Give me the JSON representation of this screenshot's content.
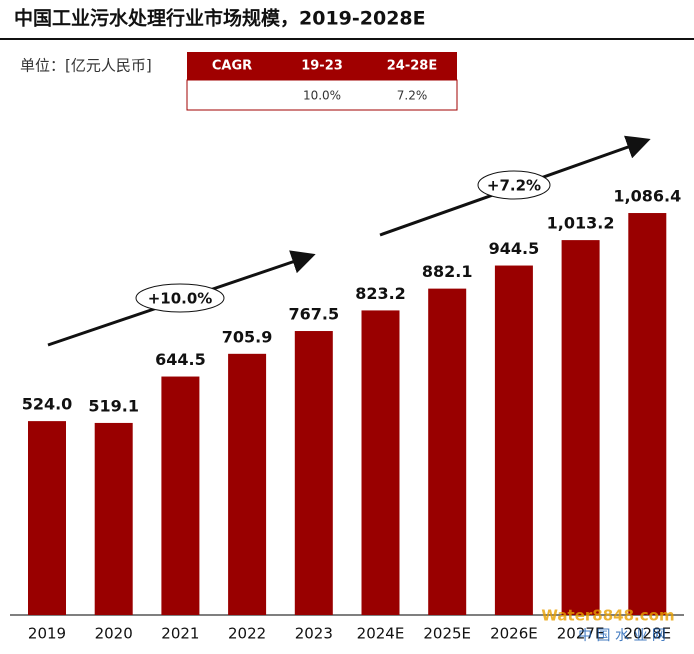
{
  "chart_data": {
    "type": "bar",
    "title": "中国工业污水处理行业市场规模，2019-2028E",
    "unit": "单位：[亿元人民币]",
    "cagr_table": {
      "header": [
        "CAGR",
        "19-23",
        "24-28E"
      ],
      "row": [
        "10.0%",
        "7.2%"
      ]
    },
    "categories": [
      "2019",
      "2020",
      "2021",
      "2022",
      "2023",
      "2024E",
      "2025E",
      "2026E",
      "2027E",
      "2028E"
    ],
    "values": [
      524.0,
      519.1,
      644.5,
      705.9,
      767.5,
      823.2,
      882.1,
      944.5,
      1013.2,
      1086.4
    ],
    "value_labels": [
      "524.0",
      "519.1",
      "644.5",
      "705.9",
      "767.5",
      "823.2",
      "882.1",
      "944.5",
      "1,013.2",
      "1,086.4"
    ],
    "color": "#990000",
    "annotations": [
      "+10.0%",
      "+7.2%"
    ],
    "watermark": [
      "Water8848.com",
      "中 国 水 业 网"
    ]
  }
}
